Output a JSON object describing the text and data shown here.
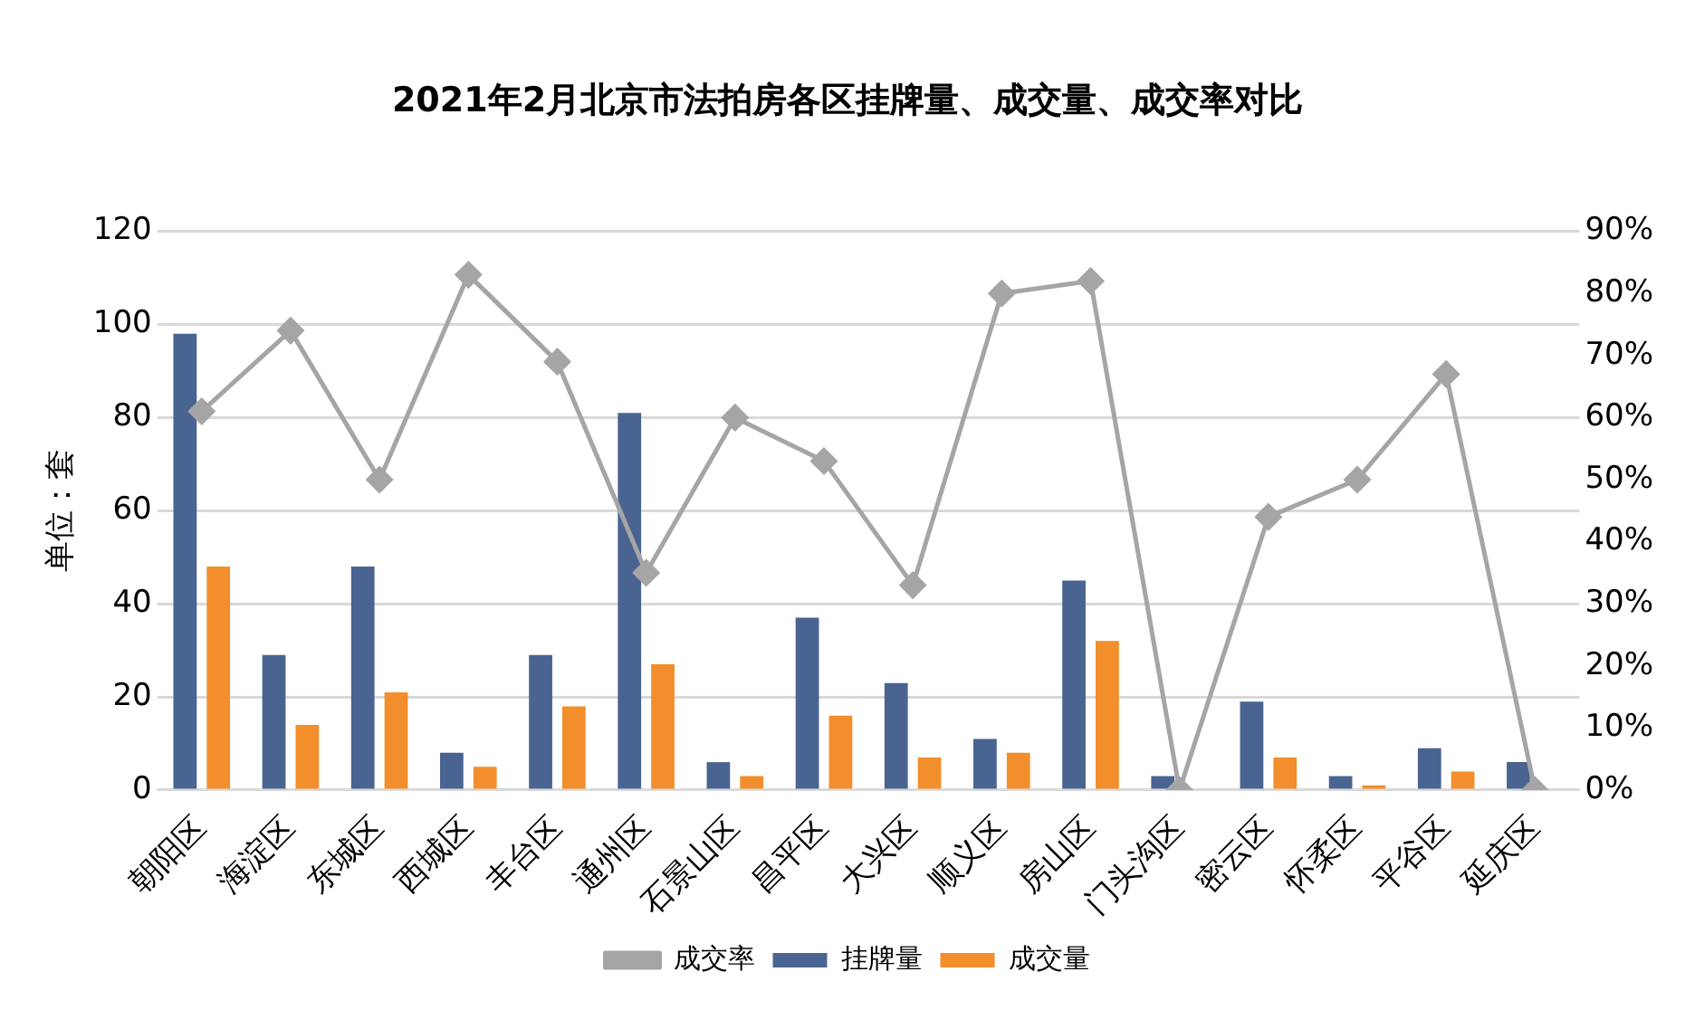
{
  "chart_data": {
    "type": "bar",
    "title": "2021年2月北京市法拍房各区挂牌量、成交量、成交率对比",
    "ylabel": "单位：套",
    "categories": [
      "朝阳区",
      "海淀区",
      "东城区",
      "西城区",
      "丰台区",
      "通州区",
      "石景山区",
      "昌平区",
      "大兴区",
      "顺义区",
      "房山区",
      "门头沟区",
      "密云区",
      "怀柔区",
      "平谷区",
      "延庆区"
    ],
    "series": [
      {
        "name": "挂牌量",
        "color": "#4a6491",
        "values": [
          98,
          29,
          48,
          8,
          29,
          81,
          6,
          37,
          23,
          11,
          45,
          3,
          19,
          3,
          9,
          6
        ]
      },
      {
        "name": "成交量",
        "color": "#f28e2b",
        "values": [
          48,
          14,
          21,
          5,
          18,
          27,
          3,
          16,
          7,
          8,
          32,
          0,
          7,
          1,
          4,
          0
        ]
      },
      {
        "name": "成交率",
        "type": "line",
        "axis": "y2",
        "color": "#a5a5a5",
        "marker": "diamond",
        "values": [
          61,
          74,
          50,
          83,
          69,
          35,
          60,
          53,
          33,
          80,
          82,
          0,
          44,
          50,
          67,
          0
        ]
      }
    ],
    "ylim": [
      0,
      120
    ],
    "yticks": [
      0,
      20,
      40,
      60,
      80,
      100,
      120
    ],
    "y2lim": [
      0,
      90
    ],
    "y2ticks": [
      {
        "value": 0,
        "label": "0%"
      },
      {
        "value": 10,
        "label": "10%"
      },
      {
        "value": 20,
        "label": "20%"
      },
      {
        "value": 30,
        "label": "30%"
      },
      {
        "value": 40,
        "label": "40%"
      },
      {
        "value": 50,
        "label": "50%"
      },
      {
        "value": 60,
        "label": "60%"
      },
      {
        "value": 70,
        "label": "70%"
      },
      {
        "value": 80,
        "label": "80%"
      },
      {
        "value": 90,
        "label": "90%"
      }
    ],
    "grid": "y",
    "legend": "bottom"
  }
}
